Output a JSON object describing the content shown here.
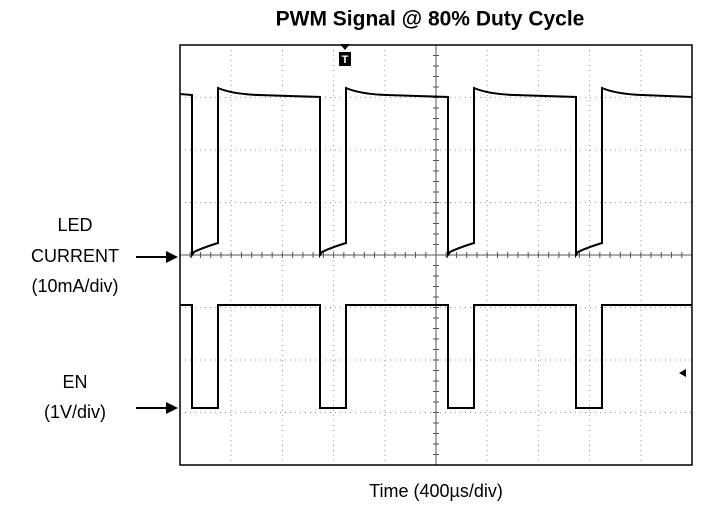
{
  "title": "PWM Signal @ 80% Duty Cycle",
  "channels": [
    {
      "label_lines": [
        "LED",
        "CURRENT",
        "(10mA/div)"
      ]
    },
    {
      "label_lines": [
        "EN",
        "(1V/div)"
      ]
    }
  ],
  "x_axis_label": "Time (400µs/div)",
  "trigger_marker": "T"
}
